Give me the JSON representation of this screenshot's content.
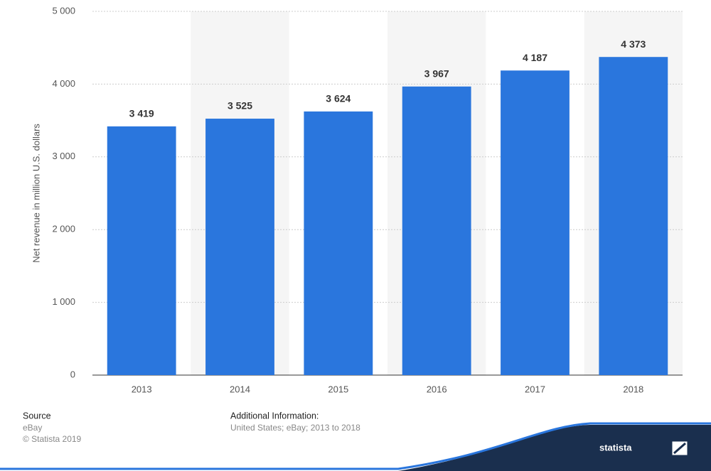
{
  "chart_data": {
    "type": "bar",
    "y_label": "Net revenue in million U.S. dollars",
    "categories": [
      "2013",
      "2014",
      "2015",
      "2016",
      "2017",
      "2018"
    ],
    "values": [
      3419,
      3525,
      3624,
      3967,
      4187,
      4373
    ],
    "value_labels": [
      "3 419",
      "3 525",
      "3 624",
      "3 967",
      "4 187",
      "4 373"
    ],
    "color": "#2a76dd",
    "ylim": [
      0,
      5000
    ],
    "yticks": [
      0,
      {
        "value": 1000,
        "label": "1 000"
      },
      {
        "value": 2000,
        "label": "2 000"
      },
      {
        "value": 3000,
        "label": "3 000"
      },
      {
        "value": 4000,
        "label": "4 000"
      },
      {
        "value": 5000,
        "label": "5 000"
      }
    ],
    "grid": true,
    "source_label": "Source",
    "source": "eBay",
    "copyright": "© Statista 2019",
    "info_label": "Additional Information:",
    "info": "United States; eBay; 2013 to 2018",
    "brand": "statista"
  }
}
